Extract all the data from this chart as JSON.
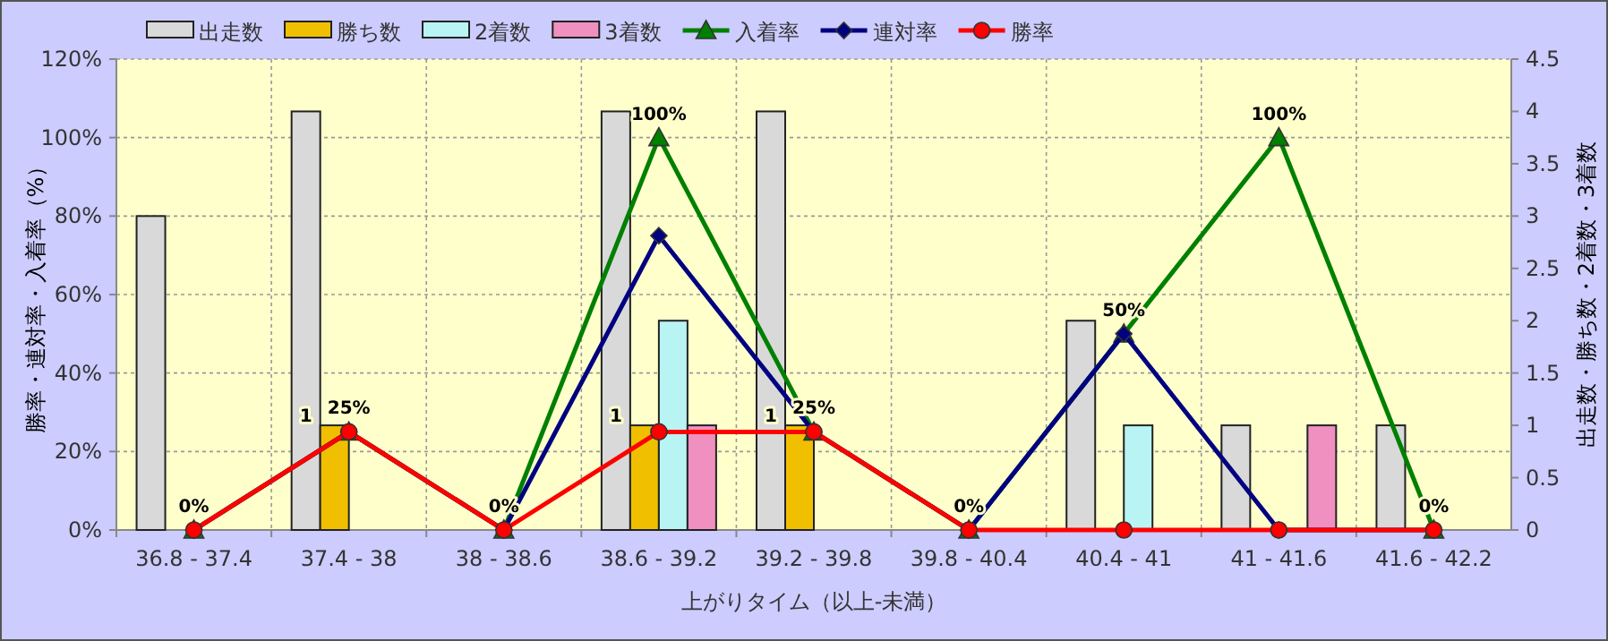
{
  "chart_data": {
    "type": "bar",
    "categories": [
      "36.8 - 37.4",
      "37.4 - 38",
      "38 - 38.6",
      "38.6 - 39.2",
      "39.2 - 39.8",
      "39.8 - 40.4",
      "40.4 - 41",
      "41 - 41.6",
      "41.6 - 42.2"
    ],
    "series": [
      {
        "name": "出走数",
        "axis": "y2",
        "color": "#d9d9d9",
        "values": [
          3,
          4,
          0,
          4,
          4,
          0,
          2,
          1,
          1
        ]
      },
      {
        "name": "勝ち数",
        "axis": "y2",
        "color": "#f0c000",
        "values": [
          0,
          1,
          0,
          1,
          1,
          0,
          0,
          0,
          0
        ],
        "value_labels": [
          null,
          "1",
          null,
          "1",
          "1",
          null,
          null,
          null,
          null
        ]
      },
      {
        "name": "2着数",
        "axis": "y2",
        "color": "#b8f4f4",
        "values": [
          0,
          0,
          0,
          2,
          0,
          0,
          1,
          0,
          0
        ]
      },
      {
        "name": "3着数",
        "axis": "y2",
        "color": "#f090c0",
        "values": [
          0,
          0,
          0,
          1,
          0,
          0,
          0,
          1,
          0
        ]
      },
      {
        "name": "入着率",
        "type": "line",
        "color": "#008000",
        "marker": "triangle",
        "values": [
          0,
          25,
          0,
          100,
          25,
          0,
          50,
          100,
          0
        ],
        "value_labels": [
          "0%",
          "25%",
          "0%",
          "100%",
          "25%",
          "0%",
          "50%",
          "100%",
          "0%"
        ]
      },
      {
        "name": "連対率",
        "type": "line",
        "color": "#000080",
        "marker": "diamond",
        "values": [
          0,
          25,
          0,
          75,
          25,
          0,
          50,
          0,
          0
        ]
      },
      {
        "name": "勝率",
        "type": "line",
        "color": "#ff0000",
        "marker": "circle",
        "values": [
          0,
          25,
          0,
          25,
          25,
          0,
          0,
          0,
          0
        ]
      }
    ],
    "ylim": [
      0,
      120
    ],
    "yticks": [
      {
        "value": 0,
        "label": "0%"
      },
      {
        "value": 20,
        "label": "20%"
      },
      {
        "value": 40,
        "label": "40%"
      },
      {
        "value": 60,
        "label": "60%"
      },
      {
        "value": 80,
        "label": "80%"
      },
      {
        "value": 100,
        "label": "100%"
      },
      {
        "value": 120,
        "label": "120%"
      }
    ],
    "y2lim": [
      0,
      4.5
    ],
    "y2ticks": [
      0,
      0.5,
      1,
      1.5,
      2,
      2.5,
      3,
      3.5,
      4,
      4.5
    ],
    "xlabel": "上がりタイム（以上-未満）",
    "ylabel": "勝率・連対率・入着率（%）",
    "y2label": "出走数・勝ち数・2着数・3着数",
    "grid": true,
    "legend": "top"
  }
}
